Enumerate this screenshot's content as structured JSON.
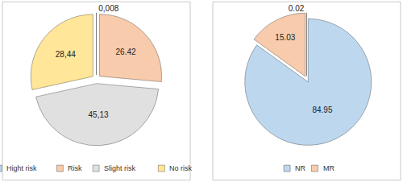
{
  "chart_data": [
    {
      "type": "pie",
      "categories": [
        "Hight risk",
        "Risk",
        "Slight risk",
        "No risk"
      ],
      "values": [
        0.008,
        26.42,
        45.13,
        28.44
      ],
      "value_labels": [
        "0,008",
        "26.42",
        "45,13",
        "28,44"
      ],
      "colors": [
        "#bdd7ee",
        "#f8cbad",
        "#e0e0e0",
        "#ffe699"
      ],
      "data_labels": true,
      "legend": "bottom"
    },
    {
      "type": "pie",
      "categories": [
        "NR",
        "MR",
        null
      ],
      "values": [
        84.95,
        15.03,
        0.02
      ],
      "value_labels": [
        "84.95",
        "15.03",
        "0.02"
      ],
      "colors": [
        "#bdd7ee",
        "#f8cbad",
        "#d9d9d9"
      ],
      "data_labels": true,
      "legend": "bottom"
    }
  ]
}
